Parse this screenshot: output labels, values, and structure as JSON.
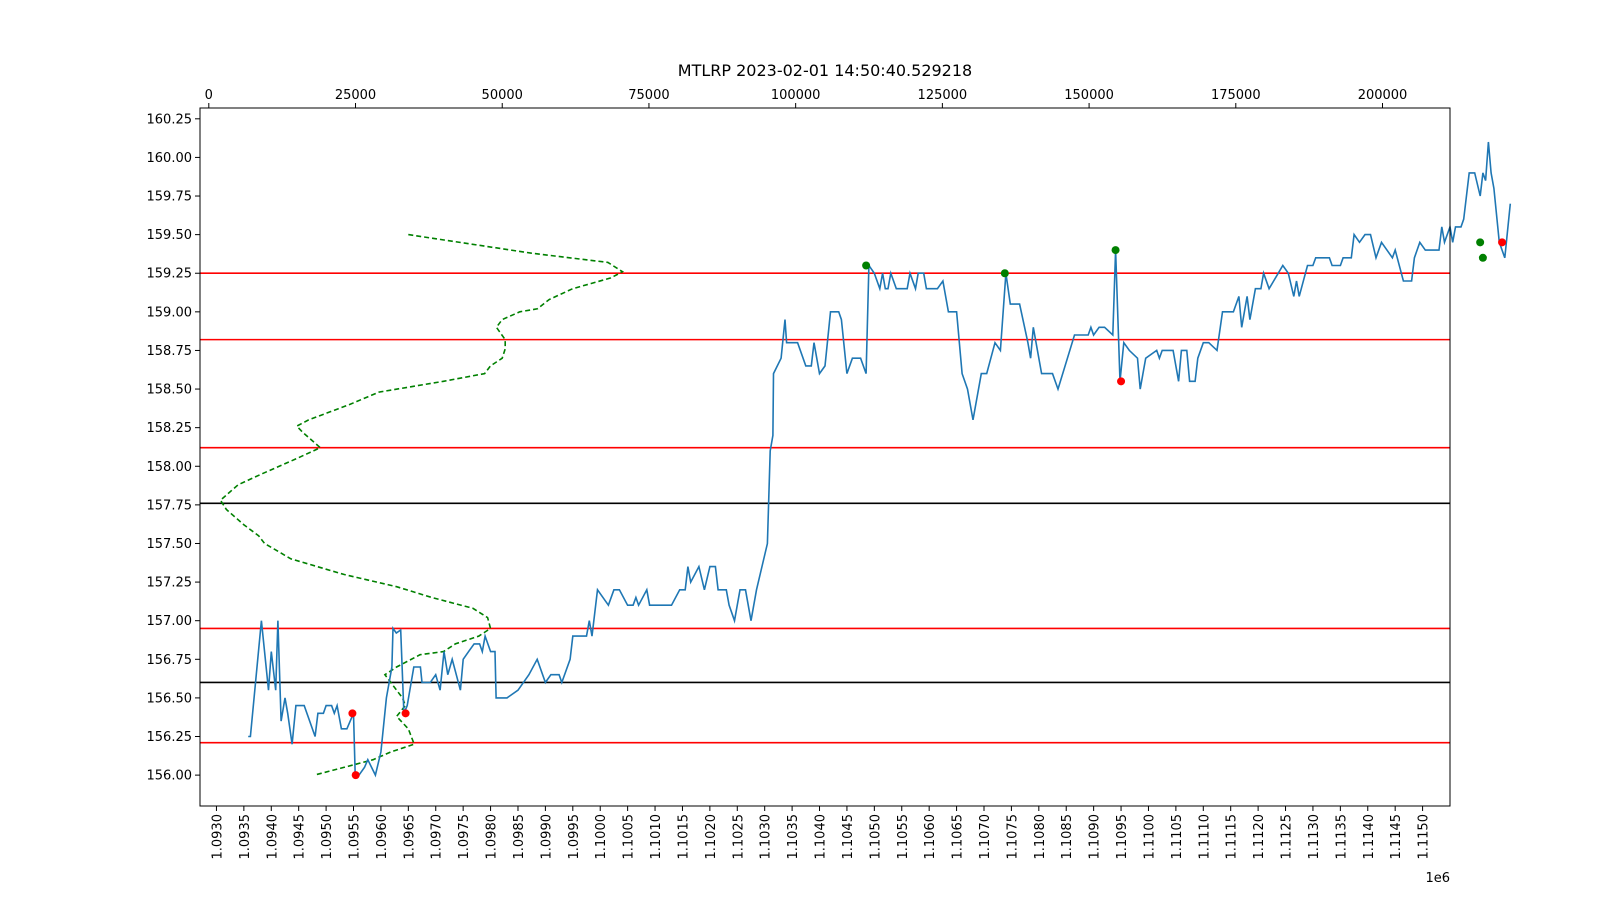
{
  "chart_data": {
    "type": "line",
    "title": "MTLRP 2023-02-01 14:50:40.529218",
    "x_offset_label": "1e6",
    "xlim": [
      1092700,
      1115500
    ],
    "ylim": [
      155.8,
      160.32
    ],
    "top_xlim": [
      -1500,
      211500
    ],
    "x_ticks": [
      1093000,
      1093500,
      1094000,
      1094500,
      1095000,
      1095500,
      1096000,
      1096500,
      1097000,
      1097500,
      1098000,
      1098500,
      1099000,
      1099500,
      1100000,
      1100500,
      1101000,
      1101500,
      1102000,
      1102500,
      1103000,
      1103500,
      1104000,
      1104500,
      1105000,
      1105500,
      1106000,
      1106500,
      1107000,
      1107500,
      1108000,
      1108500,
      1109000,
      1109500,
      1110000,
      1110500,
      1111000,
      1111500,
      1112000,
      1112500,
      1113000,
      1113500,
      1114000,
      1114500,
      1115000
    ],
    "x_tick_labels": [
      "1.0930",
      "1.0935",
      "1.0940",
      "1.0945",
      "1.0950",
      "1.0955",
      "1.0960",
      "1.0965",
      "1.0970",
      "1.0975",
      "1.0980",
      "1.0985",
      "1.0990",
      "1.0995",
      "1.1000",
      "1.1005",
      "1.1010",
      "1.1015",
      "1.1020",
      "1.1025",
      "1.1030",
      "1.1035",
      "1.1040",
      "1.1045",
      "1.1050",
      "1.1055",
      "1.1060",
      "1.1065",
      "1.1070",
      "1.1075",
      "1.1080",
      "1.1085",
      "1.1090",
      "1.1095",
      "1.1100",
      "1.1105",
      "1.1110",
      "1.1115",
      "1.1120",
      "1.1125",
      "1.1130",
      "1.1135",
      "1.1140",
      "1.1145",
      "1.1150"
    ],
    "y_ticks": [
      156.0,
      156.25,
      156.5,
      156.75,
      157.0,
      157.25,
      157.5,
      157.75,
      158.0,
      158.25,
      158.5,
      158.75,
      159.0,
      159.25,
      159.5,
      159.75,
      160.0,
      160.25
    ],
    "y_tick_labels": [
      "156.00",
      "156.25",
      "156.50",
      "156.75",
      "157.00",
      "157.25",
      "157.50",
      "157.75",
      "158.00",
      "158.25",
      "158.50",
      "158.75",
      "159.00",
      "159.25",
      "159.50",
      "159.75",
      "160.00",
      "160.25"
    ],
    "top_ticks": [
      0,
      25000,
      50000,
      75000,
      100000,
      125000,
      150000,
      175000,
      200000
    ],
    "top_tick_labels": [
      "0",
      "25000",
      "50000",
      "75000",
      "100000",
      "125000",
      "150000",
      "175000",
      "200000"
    ],
    "hlines_red": [
      159.25,
      158.82,
      158.12,
      156.95,
      156.21
    ],
    "hlines_black": [
      157.76,
      156.6
    ],
    "price_series": {
      "color": "#1f77b4",
      "points": [
        [
          1093580,
          156.25
        ],
        [
          1093620,
          156.25
        ],
        [
          1093820,
          157.0
        ],
        [
          1093950,
          156.55
        ],
        [
          1094000,
          156.8
        ],
        [
          1094080,
          156.55
        ],
        [
          1094120,
          157.0
        ],
        [
          1094180,
          156.35
        ],
        [
          1094250,
          156.5
        ],
        [
          1094300,
          156.4
        ],
        [
          1094380,
          156.2
        ],
        [
          1094450,
          156.45
        ],
        [
          1094600,
          156.45
        ],
        [
          1094800,
          156.25
        ],
        [
          1094850,
          156.4
        ],
        [
          1094950,
          156.4
        ],
        [
          1095000,
          156.45
        ],
        [
          1095100,
          156.45
        ],
        [
          1095150,
          156.4
        ],
        [
          1095200,
          156.45
        ],
        [
          1095280,
          156.3
        ],
        [
          1095380,
          156.3
        ],
        [
          1095500,
          156.4
        ],
        [
          1095530,
          156.0
        ],
        [
          1095600,
          156.0
        ],
        [
          1095700,
          156.05
        ],
        [
          1095760,
          156.1
        ],
        [
          1095900,
          156.0
        ],
        [
          1096000,
          156.15
        ],
        [
          1096100,
          156.5
        ],
        [
          1096200,
          156.7
        ],
        [
          1096220,
          156.95
        ],
        [
          1096280,
          156.92
        ],
        [
          1096360,
          156.94
        ],
        [
          1096420,
          156.4
        ],
        [
          1096480,
          156.45
        ],
        [
          1096600,
          156.7
        ],
        [
          1096720,
          156.7
        ],
        [
          1096750,
          156.6
        ],
        [
          1096900,
          156.6
        ],
        [
          1097000,
          156.65
        ],
        [
          1097080,
          156.55
        ],
        [
          1097150,
          156.8
        ],
        [
          1097220,
          156.65
        ],
        [
          1097300,
          156.75
        ],
        [
          1097450,
          156.55
        ],
        [
          1097500,
          156.75
        ],
        [
          1097600,
          156.8
        ],
        [
          1097700,
          156.85
        ],
        [
          1097800,
          156.85
        ],
        [
          1097850,
          156.8
        ],
        [
          1097900,
          156.9
        ],
        [
          1098000,
          156.8
        ],
        [
          1098080,
          156.8
        ],
        [
          1098100,
          156.5
        ],
        [
          1098300,
          156.5
        ],
        [
          1098500,
          156.55
        ],
        [
          1098700,
          156.65
        ],
        [
          1098850,
          156.75
        ],
        [
          1099000,
          156.6
        ],
        [
          1099100,
          156.65
        ],
        [
          1099250,
          156.65
        ],
        [
          1099300,
          156.6
        ],
        [
          1099450,
          156.75
        ],
        [
          1099500,
          156.9
        ],
        [
          1099700,
          156.9
        ],
        [
          1099750,
          156.9
        ],
        [
          1099800,
          157.0
        ],
        [
          1099850,
          156.9
        ],
        [
          1099950,
          157.2
        ],
        [
          1100150,
          157.1
        ],
        [
          1100250,
          157.2
        ],
        [
          1100350,
          157.2
        ],
        [
          1100500,
          157.1
        ],
        [
          1100600,
          157.1
        ],
        [
          1100650,
          157.15
        ],
        [
          1100700,
          157.1
        ],
        [
          1100850,
          157.2
        ],
        [
          1100900,
          157.1
        ],
        [
          1101050,
          157.1
        ],
        [
          1101300,
          157.1
        ],
        [
          1101450,
          157.2
        ],
        [
          1101550,
          157.2
        ],
        [
          1101600,
          157.35
        ],
        [
          1101650,
          157.25
        ],
        [
          1101800,
          157.35
        ],
        [
          1101900,
          157.2
        ],
        [
          1102000,
          157.35
        ],
        [
          1102100,
          157.35
        ],
        [
          1102150,
          157.2
        ],
        [
          1102300,
          157.2
        ],
        [
          1102350,
          157.1
        ],
        [
          1102450,
          157.0
        ],
        [
          1102550,
          157.2
        ],
        [
          1102650,
          157.2
        ],
        [
          1102750,
          157.0
        ],
        [
          1102850,
          157.2
        ],
        [
          1103050,
          157.5
        ],
        [
          1103100,
          158.1
        ],
        [
          1103150,
          158.2
        ],
        [
          1103160,
          158.6
        ],
        [
          1103300,
          158.7
        ],
        [
          1103370,
          158.95
        ],
        [
          1103400,
          158.8
        ],
        [
          1103500,
          158.8
        ],
        [
          1103600,
          158.8
        ],
        [
          1103750,
          158.65
        ],
        [
          1103850,
          158.65
        ],
        [
          1103900,
          158.8
        ],
        [
          1104000,
          158.6
        ],
        [
          1104100,
          158.65
        ],
        [
          1104200,
          159.0
        ],
        [
          1104350,
          159.0
        ],
        [
          1104400,
          158.95
        ],
        [
          1104500,
          158.6
        ],
        [
          1104600,
          158.7
        ],
        [
          1104750,
          158.7
        ],
        [
          1104850,
          158.6
        ],
        [
          1104900,
          159.3
        ],
        [
          1105000,
          159.25
        ],
        [
          1105100,
          159.15
        ],
        [
          1105150,
          159.25
        ],
        [
          1105200,
          159.15
        ],
        [
          1105250,
          159.15
        ],
        [
          1105300,
          159.25
        ],
        [
          1105400,
          159.15
        ],
        [
          1105600,
          159.15
        ],
        [
          1105650,
          159.25
        ],
        [
          1105750,
          159.15
        ],
        [
          1105800,
          159.25
        ],
        [
          1105900,
          159.25
        ],
        [
          1105950,
          159.15
        ],
        [
          1106150,
          159.15
        ],
        [
          1106250,
          159.2
        ],
        [
          1106350,
          159.0
        ],
        [
          1106500,
          159.0
        ],
        [
          1106600,
          158.6
        ],
        [
          1106700,
          158.5
        ],
        [
          1106800,
          158.3
        ],
        [
          1106950,
          158.6
        ],
        [
          1107050,
          158.6
        ],
        [
          1107200,
          158.8
        ],
        [
          1107300,
          158.75
        ],
        [
          1107400,
          159.25
        ],
        [
          1107480,
          159.05
        ],
        [
          1107650,
          159.05
        ],
        [
          1107800,
          158.8
        ],
        [
          1107850,
          158.7
        ],
        [
          1107900,
          158.9
        ],
        [
          1108050,
          158.6
        ],
        [
          1108250,
          158.6
        ],
        [
          1108350,
          158.5
        ],
        [
          1108650,
          158.85
        ],
        [
          1108850,
          158.85
        ],
        [
          1108900,
          158.85
        ],
        [
          1108950,
          158.9
        ],
        [
          1109000,
          158.85
        ],
        [
          1109100,
          158.9
        ],
        [
          1109200,
          158.9
        ],
        [
          1109350,
          158.85
        ],
        [
          1109400,
          159.4
        ],
        [
          1109480,
          158.55
        ],
        [
          1109550,
          158.8
        ],
        [
          1109650,
          158.75
        ],
        [
          1109800,
          158.7
        ],
        [
          1109850,
          158.5
        ],
        [
          1109950,
          158.7
        ],
        [
          1110150,
          158.75
        ],
        [
          1110200,
          158.7
        ],
        [
          1110250,
          158.75
        ],
        [
          1110450,
          158.75
        ],
        [
          1110550,
          158.55
        ],
        [
          1110600,
          158.75
        ],
        [
          1110700,
          158.75
        ],
        [
          1110750,
          158.55
        ],
        [
          1110850,
          158.55
        ],
        [
          1110900,
          158.7
        ],
        [
          1111000,
          158.8
        ],
        [
          1111100,
          158.8
        ],
        [
          1111250,
          158.75
        ],
        [
          1111350,
          159.0
        ],
        [
          1111550,
          159.0
        ],
        [
          1111650,
          159.1
        ],
        [
          1111700,
          158.9
        ],
        [
          1111800,
          159.1
        ],
        [
          1111850,
          158.95
        ],
        [
          1111950,
          159.15
        ],
        [
          1112050,
          159.15
        ],
        [
          1112100,
          159.25
        ],
        [
          1112200,
          159.15
        ],
        [
          1112450,
          159.3
        ],
        [
          1112550,
          159.25
        ],
        [
          1112650,
          159.1
        ],
        [
          1112700,
          159.2
        ],
        [
          1112750,
          159.1
        ],
        [
          1112900,
          159.3
        ],
        [
          1113000,
          159.3
        ],
        [
          1113050,
          159.35
        ],
        [
          1113300,
          159.35
        ],
        [
          1113350,
          159.3
        ],
        [
          1113500,
          159.3
        ],
        [
          1113550,
          159.35
        ],
        [
          1113700,
          159.35
        ],
        [
          1113750,
          159.5
        ],
        [
          1113850,
          159.45
        ],
        [
          1113950,
          159.5
        ],
        [
          1114050,
          159.5
        ],
        [
          1114150,
          159.35
        ],
        [
          1114250,
          159.45
        ],
        [
          1114450,
          159.35
        ],
        [
          1114500,
          159.4
        ],
        [
          1114650,
          159.2
        ],
        [
          1114800,
          159.2
        ],
        [
          1114850,
          159.35
        ],
        [
          1114950,
          159.45
        ],
        [
          1115050,
          159.4
        ],
        [
          1115300,
          159.4
        ],
        [
          1115350,
          159.55
        ],
        [
          1115400,
          159.45
        ],
        [
          1115500,
          159.55
        ],
        [
          1115550,
          159.45
        ],
        [
          1115600,
          159.55
        ],
        [
          1115700,
          159.55
        ],
        [
          1115750,
          159.6
        ],
        [
          1115850,
          159.9
        ],
        [
          1115950,
          159.9
        ],
        [
          1116050,
          159.75
        ],
        [
          1116100,
          159.9
        ],
        [
          1116150,
          159.85
        ],
        [
          1116200,
          160.1
        ],
        [
          1116250,
          159.9
        ],
        [
          1116300,
          159.8
        ],
        [
          1116400,
          159.45
        ],
        [
          1116500,
          159.35
        ],
        [
          1116600,
          159.7
        ]
      ]
    },
    "volume_profile": {
      "color": "#008000",
      "style": "dashed",
      "points": [
        [
          34000,
          159.5
        ],
        [
          55000,
          159.38
        ],
        [
          68000,
          159.32
        ],
        [
          70500,
          159.26
        ],
        [
          68500,
          159.22
        ],
        [
          62000,
          159.15
        ],
        [
          58000,
          159.08
        ],
        [
          56000,
          159.02
        ],
        [
          53000,
          159.0
        ],
        [
          50000,
          158.95
        ],
        [
          49000,
          158.9
        ],
        [
          50500,
          158.82
        ],
        [
          50500,
          158.76
        ],
        [
          50000,
          158.7
        ],
        [
          48000,
          158.65
        ],
        [
          47000,
          158.6
        ],
        [
          40000,
          158.55
        ],
        [
          29000,
          158.48
        ],
        [
          24000,
          158.4
        ],
        [
          17000,
          158.3
        ],
        [
          15000,
          158.26
        ],
        [
          16000,
          158.22
        ],
        [
          19000,
          158.12
        ],
        [
          15000,
          158.05
        ],
        [
          9000,
          157.95
        ],
        [
          5000,
          157.88
        ],
        [
          2000,
          157.78
        ],
        [
          3000,
          157.72
        ],
        [
          6000,
          157.62
        ],
        [
          8500,
          157.55
        ],
        [
          9500,
          157.5
        ],
        [
          14000,
          157.4
        ],
        [
          23000,
          157.3
        ],
        [
          32000,
          157.22
        ],
        [
          38000,
          157.15
        ],
        [
          45000,
          157.08
        ],
        [
          47500,
          157.02
        ],
        [
          48000,
          156.95
        ],
        [
          46000,
          156.9
        ],
        [
          42000,
          156.85
        ],
        [
          40000,
          156.8
        ],
        [
          36000,
          156.78
        ],
        [
          32000,
          156.7
        ],
        [
          30000,
          156.65
        ],
        [
          32000,
          156.55
        ],
        [
          33000,
          156.5
        ],
        [
          33500,
          156.45
        ],
        [
          32000,
          156.38
        ],
        [
          34000,
          156.3
        ],
        [
          35000,
          156.2
        ],
        [
          31000,
          156.15
        ],
        [
          28000,
          156.1
        ],
        [
          23000,
          156.05
        ],
        [
          18000,
          156.0
        ]
      ]
    },
    "markers_red": [
      [
        1095480,
        156.4
      ],
      [
        1095540,
        156.0
      ],
      [
        1096450,
        156.4
      ],
      [
        1109500,
        158.55
      ],
      [
        1116450,
        159.45
      ]
    ],
    "markers_green": [
      [
        1104850,
        159.3
      ],
      [
        1107380,
        159.25
      ],
      [
        1109400,
        159.4
      ],
      [
        1116050,
        159.45
      ],
      [
        1116100,
        159.35
      ]
    ],
    "colors": {
      "red_line": "#ff0000",
      "black_line": "#000000",
      "price": "#1f77b4",
      "profile": "#008000",
      "marker_red": "#ff0000",
      "marker_green": "#008000"
    }
  }
}
